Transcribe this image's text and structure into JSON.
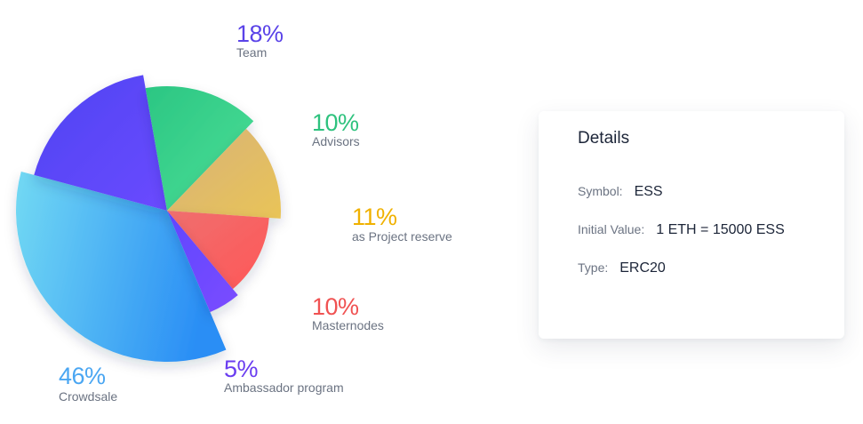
{
  "chart_data": {
    "type": "pie",
    "slices": [
      {
        "label": "Team",
        "percent_text": "18%",
        "value": 18,
        "color": "#5c46f5",
        "color2": "#6e4cff",
        "label_color": "#5a43e8"
      },
      {
        "label": "Advisors",
        "percent_text": "10%",
        "value": 10,
        "color": "#2fcf85",
        "color2": "#41de95",
        "label_color": "#2ec27e"
      },
      {
        "label": "as Project reserve",
        "percent_text": "11%",
        "value": 11,
        "color": "#e9c35a",
        "color2": "#d9b46a",
        "label_color": "#f0b100"
      },
      {
        "label": "Masternodes",
        "percent_text": "10%",
        "value": 10,
        "color": "#ff5a5a",
        "color2": "#f06b6b",
        "label_color": "#f05252"
      },
      {
        "label": "Ambassador program",
        "percent_text": "5%",
        "value": 5,
        "color": "#6b46ff",
        "color2": "#7c4dff",
        "label_color": "#6a3df0"
      },
      {
        "label": "Crowdsale",
        "percent_text": "46%",
        "value": 46,
        "color": "#6ed6f3",
        "color2": "#2a8ff5",
        "label_color": "#4aa6f2"
      }
    ]
  },
  "details": {
    "title": "Details",
    "symbol_label": "Symbol:",
    "symbol_value": "ESS",
    "initial_label": "Initial Value:",
    "initial_value": "1 ETH = 15000 ESS",
    "type_label": "Type:",
    "type_value": "ERC20"
  }
}
